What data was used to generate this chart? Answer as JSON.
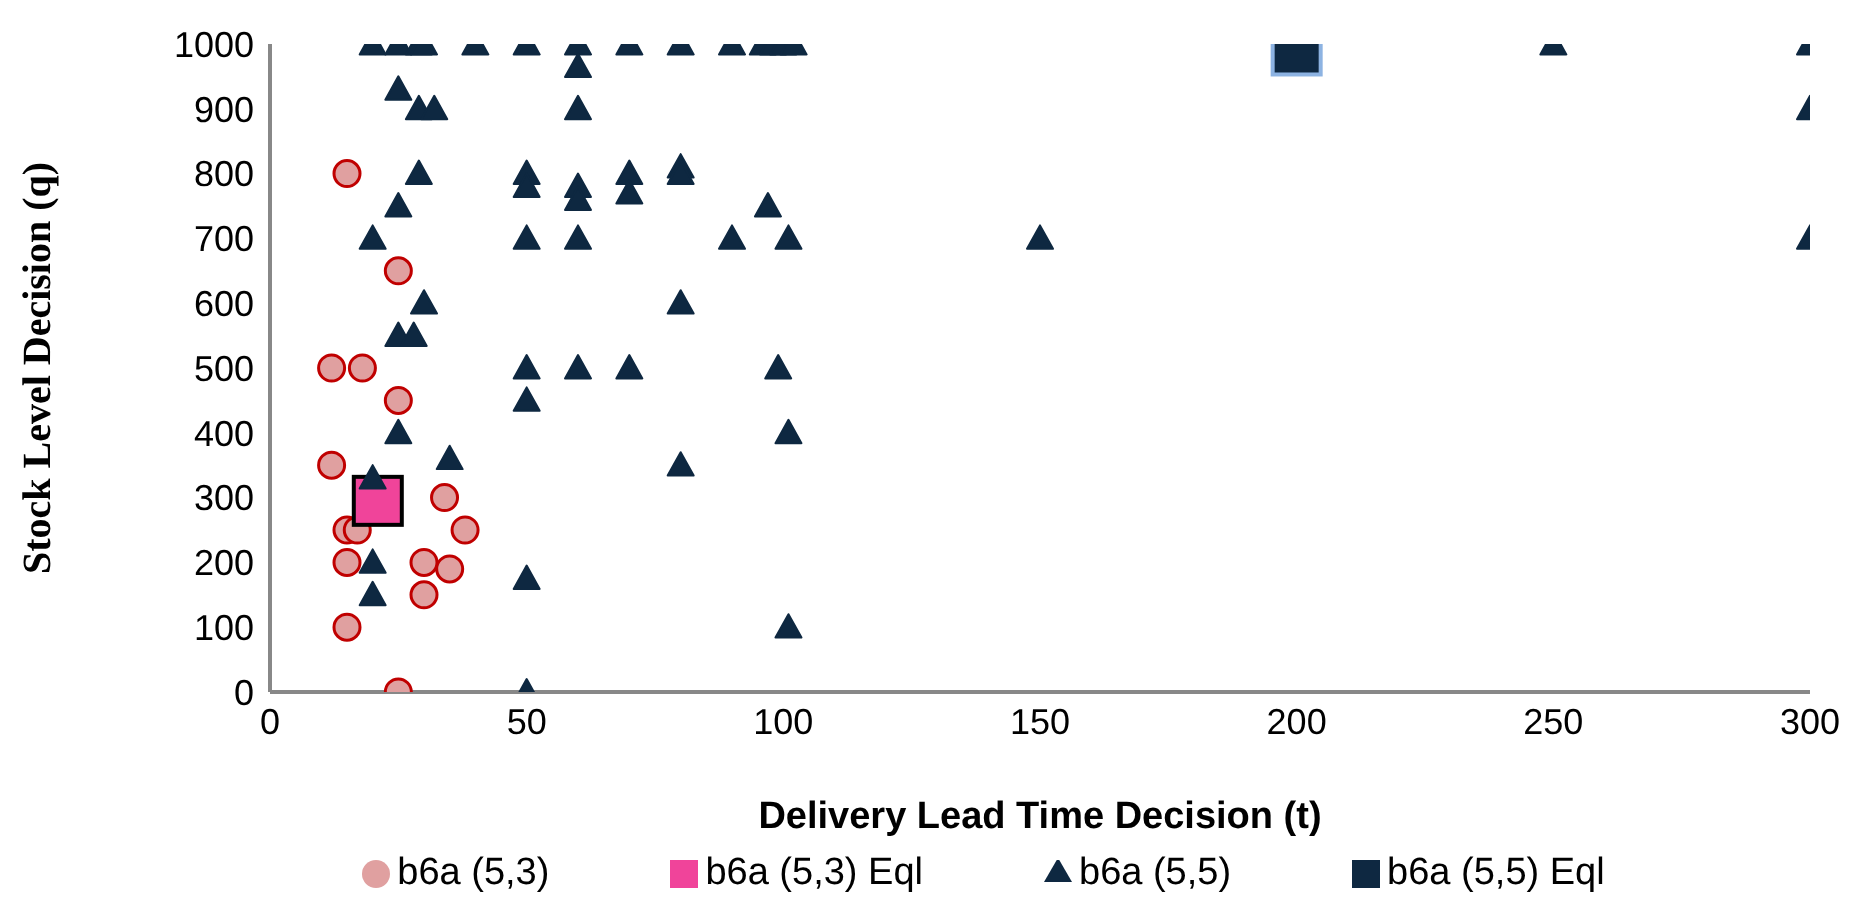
{
  "chart_data": {
    "type": "scatter",
    "xlabel": "Delivery Lead Time Decision (t)",
    "ylabel": "Stock Level Decision (q)",
    "xlim": [
      0,
      300
    ],
    "xticks": [
      0,
      50,
      100,
      150,
      200,
      250,
      300
    ],
    "ylim": [
      0,
      1000
    ],
    "yticks": [
      0,
      100,
      200,
      300,
      400,
      500,
      600,
      700,
      800,
      900,
      1000
    ],
    "grid": false,
    "legend": "bottom",
    "series": [
      {
        "name": "b6a (5,3)",
        "color": "#e0a0a0",
        "marker": "circle",
        "x": [
          15,
          25,
          12,
          18,
          25,
          12,
          34,
          15,
          17,
          38,
          15,
          30,
          35,
          30,
          15,
          25
        ],
        "values": [
          800,
          650,
          500,
          500,
          450,
          350,
          300,
          250,
          250,
          250,
          200,
          200,
          190,
          150,
          100,
          0
        ]
      },
      {
        "name": "b6a (5,3) Eql",
        "color": "#f0449a",
        "marker": "square",
        "x": [
          21
        ],
        "values": [
          295
        ]
      },
      {
        "name": "b6a (5,5)",
        "color": "#0e2841",
        "marker": "triangle",
        "x": [
          20,
          25,
          29,
          30,
          40,
          50,
          60,
          70,
          80,
          90,
          96,
          98,
          100,
          102,
          250,
          300,
          60,
          25,
          29,
          32,
          60,
          300,
          29,
          50,
          50,
          60,
          60,
          70,
          70,
          80,
          80,
          25,
          97,
          20,
          50,
          60,
          90,
          101,
          150,
          300,
          30,
          80,
          25,
          28,
          50,
          60,
          70,
          99,
          50,
          25,
          101,
          35,
          80,
          20,
          20,
          20,
          50,
          101,
          50
        ],
        "values": [
          1000,
          1000,
          1000,
          1000,
          1000,
          1000,
          1000,
          1000,
          1000,
          1000,
          1000,
          1000,
          1000,
          1000,
          1000,
          1000,
          965,
          930,
          900,
          900,
          900,
          900,
          800,
          800,
          780,
          780,
          760,
          800,
          770,
          810,
          800,
          750,
          750,
          700,
          700,
          700,
          700,
          700,
          700,
          700,
          600,
          600,
          550,
          550,
          500,
          500,
          500,
          500,
          450,
          400,
          400,
          360,
          350,
          330,
          200,
          150,
          175,
          100,
          0
        ]
      },
      {
        "name": "b6a (5,5) Eql",
        "color": "#0e2841",
        "marker": "square",
        "x": [
          200
        ],
        "values": [
          990
        ]
      }
    ]
  }
}
